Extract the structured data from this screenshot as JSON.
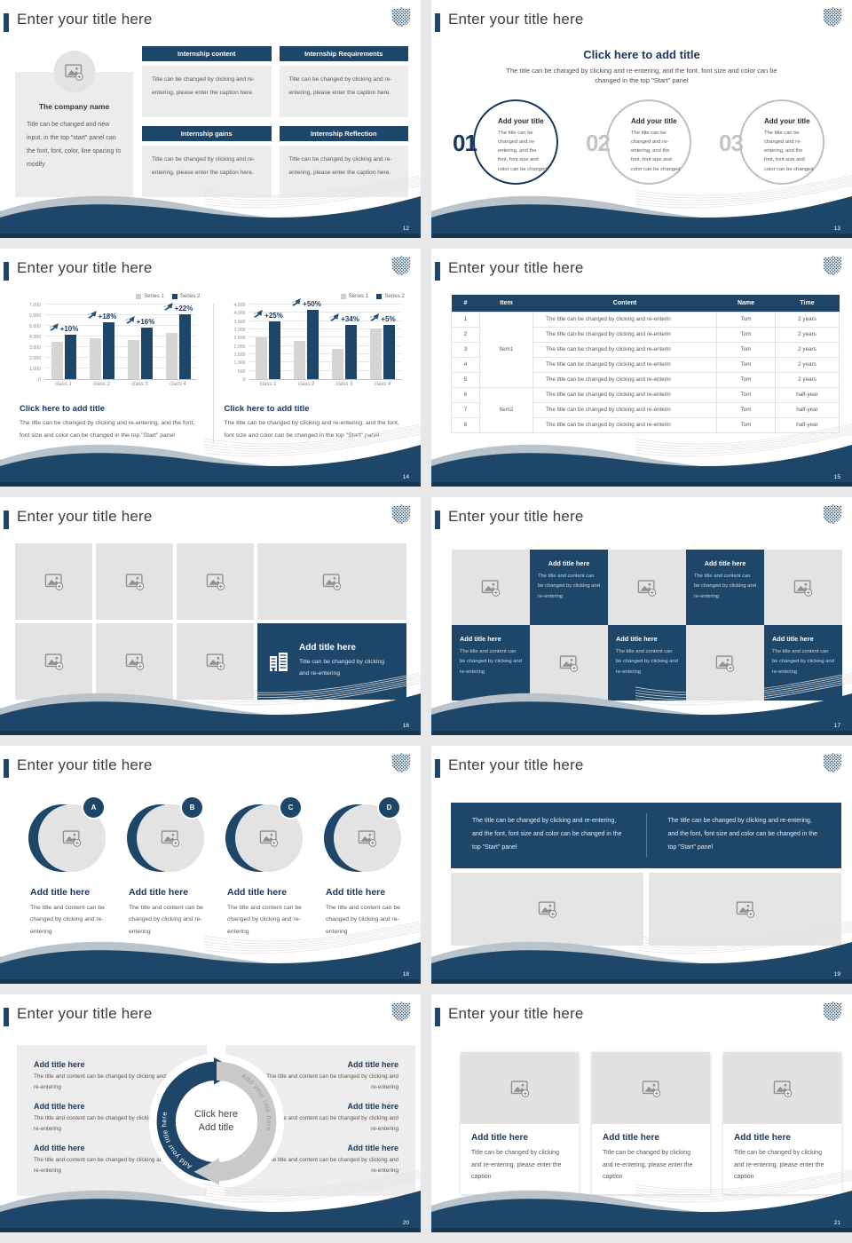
{
  "common": {
    "slide_title": "Enter your title here"
  },
  "icons": {
    "logo": "school-emblem-icon",
    "img": "image-placeholder-icon",
    "building": "building-icon",
    "trend": "trend-arrow-icon"
  },
  "colors": {
    "navy": "#1d4668",
    "navy_dark": "#17375c",
    "panel_gray": "#ececec",
    "text_gray": "#595959"
  },
  "slides": {
    "s12": {
      "page": "12",
      "company": {
        "name": "The company name",
        "body": "Title can be changed and new input, in the top \"start\" panel can the font, font, color, line spacing to modify"
      },
      "boxes": [
        {
          "title": "Internship content",
          "body": "Title can be changed by clicking and re-entering, please enter the caption here."
        },
        {
          "title": "Internship Requirements",
          "body": "Title can be changed by clicking and re-entering, please enter the caption here."
        },
        {
          "title": "Internship gains",
          "body": "Title can be changed by clicking and re-entering, please enter the caption here."
        },
        {
          "title": "Internship Reflection",
          "body": "Title can be changed by clicking and re-entering, please enter the caption here."
        }
      ]
    },
    "s13": {
      "page": "13",
      "heading": "Click here to add title",
      "subheading": "The title can be changed by clicking and re-entering, and the font, font size and color can be changed in the top \"Start\" panel",
      "steps": [
        {
          "num": "01",
          "title": "Add your title",
          "body": "The title can be changed and re-entering, and the font, font size and color can be changed"
        },
        {
          "num": "02",
          "title": "Add your title",
          "body": "The title can be changed and re-entering, and the font, font size and color can be changed"
        },
        {
          "num": "03",
          "title": "Add your title",
          "body": "The title can be changed and re-entering, and the font, font size and color can be changed"
        }
      ]
    },
    "s14": {
      "page": "14",
      "panels": [
        {
          "title": "Click here to add title",
          "body": "The title can be changed by clicking and re-entering, and the font, font size and color can be changed in the top \"Start\" panel"
        },
        {
          "title": "Click here to add title",
          "body": "The title can be changed by clicking and re-entering, and the font, font size and color can be changed in the top \"Start\" panel"
        }
      ]
    },
    "s15": {
      "page": "15",
      "table": {
        "headers": [
          "#",
          "Item",
          "Content",
          "Name",
          "Time"
        ],
        "groups": [
          {
            "item": "Item1"
          },
          {
            "item": "Item2"
          }
        ],
        "rows": [
          {
            "num": "1",
            "content": "The title can be changed by clicking and re-enterin",
            "name": "Tom",
            "time": "2 years"
          },
          {
            "num": "2",
            "content": "The title can be changed by clicking and re-enterin",
            "name": "Tom",
            "time": "2 years"
          },
          {
            "num": "3",
            "content": "The title can be changed by clicking and re-enterin",
            "name": "Tom",
            "time": "2 years"
          },
          {
            "num": "4",
            "content": "The title can be changed by clicking and re-enterin",
            "name": "Tom",
            "time": "2 years"
          },
          {
            "num": "5",
            "content": "The title can be changed by clicking and re-enterin",
            "name": "Tom",
            "time": "2 years"
          },
          {
            "num": "6",
            "content": "The title can be changed by clicking and re-enterin",
            "name": "Tom",
            "time": "half-year"
          },
          {
            "num": "7",
            "content": "The title can be changed by clicking and re-enterin",
            "name": "Tom",
            "time": "half-year"
          },
          {
            "num": "8",
            "content": "The title can be changed by clicking and re-enterin",
            "name": "Tom",
            "time": "half-year"
          }
        ]
      }
    },
    "s16": {
      "page": "16",
      "feature": {
        "title": "Add title here",
        "body": "Title can be changed by clicking and re-entering"
      }
    },
    "s17": {
      "page": "17",
      "tiles": [
        {
          "title": "Add title here",
          "body": "The title and content can be changed by clicking and re-entering"
        },
        {
          "title": "Add title here",
          "body": "The title and content can be changed by clicking and re-entering"
        },
        {
          "title": "Add title here",
          "body": "The title and content can be changed by clicking and re-entering"
        },
        {
          "title": "Add title here",
          "body": "The title and content can be changed by clicking and re-entering"
        },
        {
          "title": "Add title here",
          "body": "The title and content can be changed by clicking and re-entering"
        }
      ]
    },
    "s18": {
      "page": "18",
      "items": [
        {
          "letter": "A",
          "title": "Add title here",
          "body": "The title and content can be changed by clicking and re-entering"
        },
        {
          "letter": "B",
          "title": "Add title here",
          "body": "The title and content can be changed by clicking and re-entering"
        },
        {
          "letter": "C",
          "title": "Add title here",
          "body": "The title and content can be changed by clicking and re-entering"
        },
        {
          "letter": "D",
          "title": "Add title here",
          "body": "The title and content can be changed by clicking and re-entering"
        }
      ]
    },
    "s19": {
      "page": "19",
      "bars": [
        "The title can be changed by clicking and re-entering,  and the font, font size and color can be changed in the top \"Start\" panel",
        "The title can be changed by clicking and re-entering,  and the font, font size and color can be changed in the top \"Start\" panel"
      ]
    },
    "s20": {
      "page": "20",
      "center": {
        "line1": "Click here",
        "line2": "Add title"
      },
      "arrow_labels": [
        "Add your title here",
        "Add your title here"
      ],
      "left": [
        {
          "title": "Add title here",
          "body": "The title and content can be changed by clicking and re-entering"
        },
        {
          "title": "Add title here",
          "body": "The title and content can be changed by clicking and re-entering"
        },
        {
          "title": "Add title here",
          "body": "The title and content can be changed by clicking and re-entering"
        }
      ],
      "right": [
        {
          "title": "Add title here",
          "body": "The title and content can be changed by clicking and re-entering"
        },
        {
          "title": "Add title here",
          "body": "The title and content can be changed by clicking and re-entering"
        },
        {
          "title": "Add title here",
          "body": "The title and content can be changed by clicking and re-entering"
        }
      ]
    },
    "s21": {
      "page": "21",
      "cards": [
        {
          "title": "Add title here",
          "body": "Title can be changed by clicking and re-entering, please enter the caption"
        },
        {
          "title": "Add title here",
          "body": "Title can be changed by clicking and re-entering, please enter the caption"
        },
        {
          "title": "Add title here",
          "body": "Title can be changed by clicking and re-entering, please enter the caption"
        }
      ]
    }
  },
  "chart_data": [
    {
      "type": "bar",
      "title": "",
      "categories": [
        "class 1",
        "class 2",
        "class 3",
        "class 4"
      ],
      "series": [
        {
          "name": "Series 1",
          "values": [
            3500,
            3800,
            3700,
            4300
          ]
        },
        {
          "name": "Series 2",
          "values": [
            4200,
            5300,
            4800,
            6100
          ]
        }
      ],
      "bar_labels": [
        "+10%",
        "+18%",
        "+16%",
        "+22%"
      ],
      "ylim": [
        0,
        7000
      ],
      "ytick_step": 1000,
      "legend_position": "top-right",
      "grid": true
    },
    {
      "type": "bar",
      "title": "",
      "categories": [
        "class 1",
        "class 2",
        "class 3",
        "class 4"
      ],
      "series": [
        {
          "name": "Series 1",
          "values": [
            2500,
            2300,
            1800,
            3050
          ]
        },
        {
          "name": "Series 2",
          "values": [
            3500,
            4200,
            3250,
            3250
          ]
        }
      ],
      "bar_labels": [
        "+25%",
        "+50%",
        "+34%",
        "+5%"
      ],
      "ylim": [
        0,
        4500
      ],
      "ytick_step": 500,
      "legend_position": "top-right",
      "grid": true
    }
  ]
}
